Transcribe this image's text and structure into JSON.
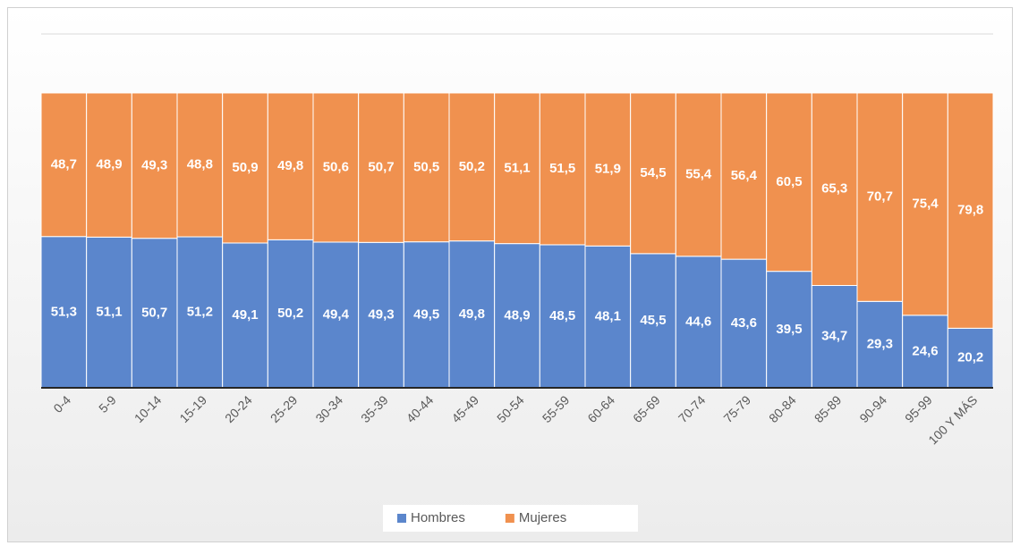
{
  "chart_data": {
    "type": "stacked_bar",
    "categories": [
      "0-4",
      "5-9",
      "10-14",
      "15-19",
      "20-24",
      "25-29",
      "30-34",
      "35-39",
      "40-44",
      "45-49",
      "50-54",
      "55-59",
      "60-64",
      "65-69",
      "70-74",
      "75-79",
      "80-84",
      "85-89",
      "90-94",
      "95-99",
      "100 Y MÁS"
    ],
    "series": [
      {
        "name": "Hombres",
        "color": "#5b86cc",
        "values": [
          51.3,
          51.1,
          50.7,
          51.2,
          49.1,
          50.2,
          49.4,
          49.3,
          49.5,
          49.8,
          48.9,
          48.5,
          48.1,
          45.5,
          44.6,
          43.6,
          39.5,
          34.7,
          29.3,
          24.6,
          20.2
        ],
        "value_labels": [
          "51,3",
          "51,1",
          "50,7",
          "51,2",
          "49,1",
          "50,2",
          "49,4",
          "49,3",
          "49,5",
          "49,8",
          "48,9",
          "48,5",
          "48,1",
          "45,5",
          "44,6",
          "43,6",
          "39,5",
          "34,7",
          "29,3",
          "24,6",
          "20,2"
        ]
      },
      {
        "name": "Mujeres",
        "color": "#f0914f",
        "values": [
          48.7,
          48.9,
          49.3,
          48.8,
          50.9,
          49.8,
          50.6,
          50.7,
          50.5,
          50.2,
          51.1,
          51.5,
          51.9,
          54.5,
          55.4,
          56.4,
          60.5,
          65.3,
          70.7,
          75.4,
          79.8
        ],
        "value_labels": [
          "48,7",
          "48,9",
          "49,3",
          "48,8",
          "50,9",
          "49,8",
          "50,6",
          "50,7",
          "50,5",
          "50,2",
          "51,1",
          "51,5",
          "51,9",
          "54,5",
          "55,4",
          "56,4",
          "60,5",
          "65,3",
          "70,7",
          "75,4",
          "79,8"
        ]
      }
    ],
    "ylim": [
      0,
      120
    ],
    "yticks": [
      0,
      20,
      40,
      60,
      80,
      100,
      120
    ],
    "grid": true,
    "legend": "bottom"
  }
}
